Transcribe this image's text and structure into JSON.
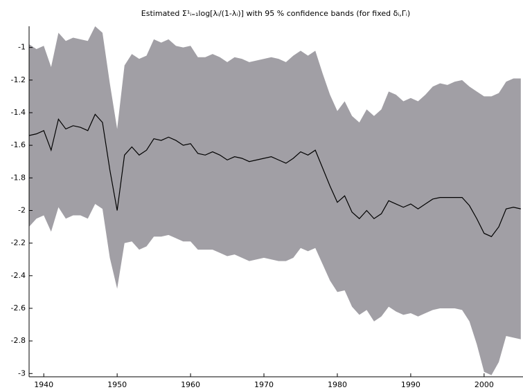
{
  "chart_data": {
    "type": "band-line",
    "title": "Estimated Σ¹ᵢ₌₁log[λᵢ/(1-λᵢ)] with 95 % confidence bands (for fixed δᵢ,Γᵢ)",
    "x": [
      1938,
      1939,
      1940,
      1941,
      1942,
      1943,
      1944,
      1945,
      1946,
      1947,
      1948,
      1949,
      1950,
      1951,
      1952,
      1953,
      1954,
      1955,
      1956,
      1957,
      1958,
      1959,
      1960,
      1961,
      1962,
      1963,
      1964,
      1965,
      1966,
      1967,
      1968,
      1969,
      1970,
      1971,
      1972,
      1973,
      1974,
      1975,
      1976,
      1977,
      1978,
      1979,
      1980,
      1981,
      1982,
      1983,
      1984,
      1985,
      1986,
      1987,
      1988,
      1989,
      1990,
      1991,
      1992,
      1993,
      1994,
      1995,
      1996,
      1997,
      1998,
      1999,
      2000,
      2001,
      2002,
      2003,
      2004,
      2005
    ],
    "series": [
      {
        "color": "#000000",
        "values": [
          -1.54,
          -1.53,
          -1.51,
          -1.63,
          -1.44,
          -1.5,
          -1.48,
          -1.49,
          -1.51,
          -1.41,
          -1.46,
          -1.75,
          -2.0,
          -1.66,
          -1.61,
          -1.66,
          -1.63,
          -1.56,
          -1.57,
          -1.55,
          -1.57,
          -1.6,
          -1.59,
          -1.65,
          -1.66,
          -1.64,
          -1.66,
          -1.69,
          -1.67,
          -1.68,
          -1.7,
          -1.69,
          -1.68,
          -1.67,
          -1.69,
          -1.71,
          -1.68,
          -1.64,
          -1.66,
          -1.63,
          -1.74,
          -1.85,
          -1.95,
          -1.91,
          -2.01,
          -2.05,
          -2.0,
          -2.05,
          -2.02,
          -1.94,
          -1.96,
          -1.98,
          -1.96,
          -1.99,
          -1.96,
          -1.93,
          -1.92,
          -1.92,
          -1.92,
          -1.92,
          -1.97,
          -2.05,
          -2.14,
          -2.16,
          -2.1,
          -1.99,
          -1.98,
          -1.99
        ]
      }
    ],
    "band": {
      "color": "#a19fa5",
      "upper": [
        -0.98,
        -1.01,
        -0.99,
        -1.12,
        -0.91,
        -0.96,
        -0.94,
        -0.95,
        -0.96,
        -0.87,
        -0.91,
        -1.22,
        -1.5,
        -1.11,
        -1.04,
        -1.07,
        -1.05,
        -0.95,
        -0.97,
        -0.95,
        -0.99,
        -1.0,
        -0.99,
        -1.06,
        -1.06,
        -1.04,
        -1.06,
        -1.09,
        -1.06,
        -1.07,
        -1.09,
        -1.08,
        -1.07,
        -1.06,
        -1.07,
        -1.09,
        -1.05,
        -1.02,
        -1.05,
        -1.02,
        -1.16,
        -1.29,
        -1.39,
        -1.33,
        -1.42,
        -1.46,
        -1.38,
        -1.42,
        -1.38,
        -1.27,
        -1.29,
        -1.33,
        -1.31,
        -1.33,
        -1.29,
        -1.24,
        -1.22,
        -1.23,
        -1.21,
        -1.2,
        -1.24,
        -1.27,
        -1.3,
        -1.3,
        -1.28,
        -1.21,
        -1.19,
        -1.19
      ],
      "lower": [
        -2.1,
        -2.05,
        -2.03,
        -2.13,
        -1.98,
        -2.05,
        -2.03,
        -2.03,
        -2.05,
        -1.96,
        -1.99,
        -2.29,
        -2.48,
        -2.2,
        -2.19,
        -2.24,
        -2.22,
        -2.16,
        -2.16,
        -2.15,
        -2.17,
        -2.19,
        -2.19,
        -2.24,
        -2.24,
        -2.24,
        -2.26,
        -2.28,
        -2.27,
        -2.29,
        -2.31,
        -2.3,
        -2.29,
        -2.3,
        -2.31,
        -2.31,
        -2.29,
        -2.23,
        -2.25,
        -2.23,
        -2.33,
        -2.43,
        -2.5,
        -2.49,
        -2.59,
        -2.64,
        -2.61,
        -2.68,
        -2.65,
        -2.59,
        -2.62,
        -2.64,
        -2.63,
        -2.65,
        -2.63,
        -2.61,
        -2.6,
        -2.6,
        -2.6,
        -2.61,
        -2.68,
        -2.82,
        -2.99,
        -3.01,
        -2.93,
        -2.77,
        -2.78,
        -2.79
      ]
    },
    "xlim": [
      1938,
      2005.3
    ],
    "xticks": [
      1940,
      1950,
      1960,
      1970,
      1980,
      1990,
      2000
    ],
    "ylim": [
      -3.02,
      -0.87
    ],
    "yticks": [
      -3,
      -2.8,
      -2.6,
      -2.4,
      -2.2,
      -2,
      -1.8,
      -1.6,
      -1.4,
      -1.2,
      -1
    ]
  }
}
